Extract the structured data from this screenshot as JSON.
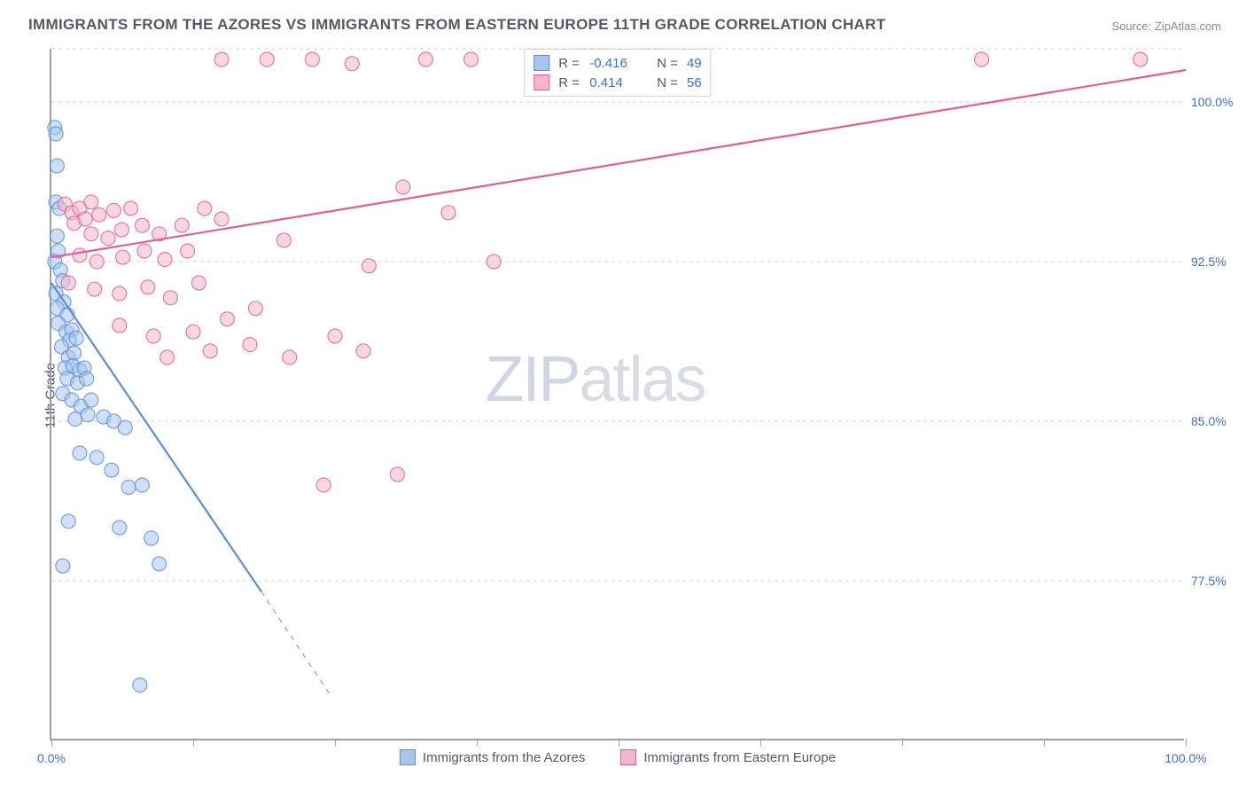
{
  "title": "IMMIGRANTS FROM THE AZORES VS IMMIGRANTS FROM EASTERN EUROPE 11TH GRADE CORRELATION CHART",
  "source": "Source: ZipAtlas.com",
  "yaxis_label": "11th Grade",
  "watermark_zip": "ZIP",
  "watermark_atlas": "atlas",
  "chart": {
    "type": "scatter",
    "background_color": "#ffffff",
    "grid_color": "#cfd2d6",
    "axis_color": "#9aa0a6",
    "tick_label_color": "#3b6fd6",
    "text_color": "#555860",
    "xlim": [
      0,
      100
    ],
    "ylim": [
      70,
      102.5
    ],
    "x_ticks_minor": [
      0,
      12.5,
      25,
      37.5,
      50,
      62.5,
      75,
      87.5,
      100
    ],
    "x_tick_labels": [
      {
        "x": 0,
        "label": "0.0%"
      },
      {
        "x": 100,
        "label": "100.0%"
      }
    ],
    "y_gridlines": [
      77.5,
      85.0,
      92.5,
      100.0,
      102.5
    ],
    "y_tick_labels": [
      {
        "y": 77.5,
        "label": "77.5%"
      },
      {
        "y": 85.0,
        "label": "85.0%"
      },
      {
        "y": 92.5,
        "label": "92.5%"
      },
      {
        "y": 100.0,
        "label": "100.0%"
      }
    ],
    "marker_radius": 8,
    "marker_opacity": 0.55,
    "line_width": 2.2,
    "series": [
      {
        "name": "Immigrants from the Azores",
        "color": "#5b8fd6",
        "fill": "#a8c5ec",
        "stroke": "#5b8fd6",
        "r_value": "-0.416",
        "n_value": "49",
        "trend": {
          "x1": 0,
          "y1": 91.5,
          "x2": 18.5,
          "y2": 77.0,
          "dash_x1": 18.5,
          "dash_y1": 77.0,
          "dash_x2": 24.5,
          "dash_y2": 72.2
        },
        "points": [
          [
            0.3,
            98.8
          ],
          [
            0.4,
            98.5
          ],
          [
            0.5,
            97.0
          ],
          [
            0.4,
            95.3
          ],
          [
            0.7,
            95.0
          ],
          [
            0.5,
            93.7
          ],
          [
            0.6,
            93.0
          ],
          [
            0.3,
            92.5
          ],
          [
            0.8,
            92.1
          ],
          [
            1.0,
            91.6
          ],
          [
            0.4,
            91.0
          ],
          [
            1.1,
            90.6
          ],
          [
            0.5,
            90.3
          ],
          [
            1.4,
            90.0
          ],
          [
            0.6,
            89.6
          ],
          [
            1.3,
            89.2
          ],
          [
            1.8,
            89.3
          ],
          [
            1.6,
            88.8
          ],
          [
            2.2,
            88.9
          ],
          [
            0.9,
            88.5
          ],
          [
            1.5,
            88.0
          ],
          [
            2.0,
            88.2
          ],
          [
            1.2,
            87.5
          ],
          [
            1.9,
            87.6
          ],
          [
            2.5,
            87.4
          ],
          [
            2.9,
            87.5
          ],
          [
            1.4,
            87.0
          ],
          [
            2.3,
            86.8
          ],
          [
            3.1,
            87.0
          ],
          [
            1.0,
            86.3
          ],
          [
            1.8,
            86.0
          ],
          [
            2.6,
            85.7
          ],
          [
            3.5,
            86.0
          ],
          [
            2.1,
            85.1
          ],
          [
            3.2,
            85.3
          ],
          [
            4.6,
            85.2
          ],
          [
            5.5,
            85.0
          ],
          [
            6.5,
            84.7
          ],
          [
            2.5,
            83.5
          ],
          [
            4.0,
            83.3
          ],
          [
            5.3,
            82.7
          ],
          [
            6.8,
            81.9
          ],
          [
            8.0,
            82.0
          ],
          [
            1.5,
            80.3
          ],
          [
            6.0,
            80.0
          ],
          [
            8.8,
            79.5
          ],
          [
            1.0,
            78.2
          ],
          [
            9.5,
            78.3
          ],
          [
            7.8,
            72.6
          ]
        ]
      },
      {
        "name": "Immigrants from Eastern Europe",
        "color": "#e15f8f",
        "fill": "#f3b6cb",
        "stroke": "#e15f8f",
        "r_value": "0.414",
        "n_value": "56",
        "trend": {
          "x1": 0,
          "y1": 92.7,
          "x2": 100,
          "y2": 101.5
        },
        "points": [
          [
            1.2,
            95.2
          ],
          [
            1.8,
            94.8
          ],
          [
            2.5,
            95.0
          ],
          [
            3.5,
            95.3
          ],
          [
            2.0,
            94.3
          ],
          [
            3.0,
            94.5
          ],
          [
            4.2,
            94.7
          ],
          [
            5.5,
            94.9
          ],
          [
            7.0,
            95.0
          ],
          [
            3.5,
            93.8
          ],
          [
            5.0,
            93.6
          ],
          [
            6.2,
            94.0
          ],
          [
            8.0,
            94.2
          ],
          [
            9.5,
            93.8
          ],
          [
            11.5,
            94.2
          ],
          [
            13.5,
            95.0
          ],
          [
            2.5,
            92.8
          ],
          [
            4.0,
            92.5
          ],
          [
            6.3,
            92.7
          ],
          [
            8.2,
            93.0
          ],
          [
            10.0,
            92.6
          ],
          [
            12.0,
            93.0
          ],
          [
            15.0,
            94.5
          ],
          [
            1.5,
            91.5
          ],
          [
            3.8,
            91.2
          ],
          [
            6.0,
            91.0
          ],
          [
            8.5,
            91.3
          ],
          [
            10.5,
            90.8
          ],
          [
            13.0,
            91.5
          ],
          [
            6.0,
            89.5
          ],
          [
            9.0,
            89.0
          ],
          [
            12.5,
            89.2
          ],
          [
            15.5,
            89.8
          ],
          [
            18.0,
            90.3
          ],
          [
            10.2,
            88.0
          ],
          [
            14.0,
            88.3
          ],
          [
            17.5,
            88.6
          ],
          [
            21.0,
            88.0
          ],
          [
            25.0,
            89.0
          ],
          [
            27.5,
            88.3
          ],
          [
            15.0,
            102.0
          ],
          [
            19.0,
            102.0
          ],
          [
            23.0,
            102.0
          ],
          [
            26.5,
            101.8
          ],
          [
            33.0,
            102.0
          ],
          [
            37.0,
            102.0
          ],
          [
            45.0,
            102.0
          ],
          [
            31.0,
            96.0
          ],
          [
            35.0,
            94.8
          ],
          [
            39.0,
            92.5
          ],
          [
            28.0,
            92.3
          ],
          [
            82.0,
            102.0
          ],
          [
            96.0,
            102.0
          ],
          [
            30.5,
            82.5
          ],
          [
            24.0,
            82.0
          ],
          [
            20.5,
            93.5
          ]
        ]
      }
    ]
  },
  "legend_bottom": {
    "s1_label": "Immigrants from the Azores",
    "s2_label": "Immigrants from Eastern Europe"
  }
}
